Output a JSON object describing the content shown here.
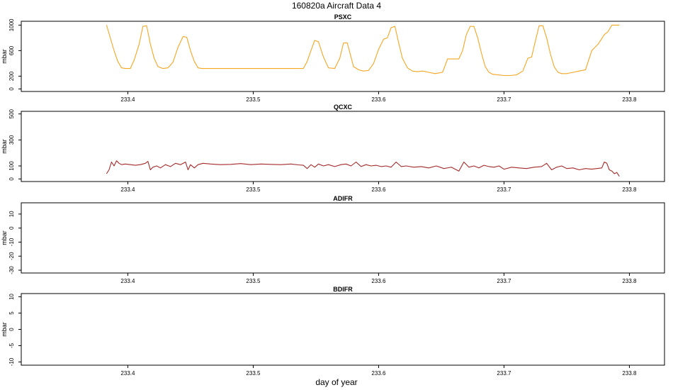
{
  "figure": {
    "title": "160820a    Aircraft Data 4",
    "xlabel": "day of year"
  },
  "chart_data": [
    {
      "type": "line",
      "title": "PSXC",
      "ylabel": "mbar",
      "xlim": [
        233.315,
        233.828
      ],
      "ylim": [
        -40,
        1060
      ],
      "xticks": [
        233.4,
        233.5,
        233.6,
        233.7,
        233.8
      ],
      "yticks": [
        0,
        200,
        600,
        1000
      ],
      "ytick_labels": [
        "0",
        "200",
        "600",
        "1000"
      ],
      "color": "#f5a623",
      "series": [
        {
          "x": [
            233.383,
            233.386,
            233.389,
            233.392,
            233.395,
            233.398,
            233.402,
            233.405,
            233.409,
            233.412,
            233.415,
            233.418,
            233.421,
            233.424,
            233.428,
            233.432,
            233.436,
            233.44,
            233.444,
            233.447,
            233.45,
            233.453,
            233.456,
            233.459,
            233.463,
            233.468,
            233.475,
            233.5,
            233.525,
            233.54,
            233.543,
            233.546,
            233.549,
            233.552,
            233.556,
            233.56,
            233.565,
            233.569,
            233.572,
            233.575,
            233.578,
            233.58,
            233.584,
            233.588,
            233.592,
            233.596,
            233.6,
            233.604,
            233.607,
            233.61,
            233.613,
            233.616,
            233.619,
            233.623,
            233.627,
            233.631,
            233.635,
            233.64,
            233.645,
            233.648,
            233.651,
            233.655,
            233.658,
            233.661,
            233.664,
            233.667,
            233.67,
            233.673,
            233.676,
            233.679,
            233.682,
            233.685,
            233.688,
            233.691,
            233.695,
            233.7,
            233.705,
            233.71,
            233.715,
            233.719,
            233.722,
            233.725,
            233.728,
            233.731,
            233.734,
            233.737,
            233.74,
            233.743,
            233.746,
            233.75,
            233.755,
            233.76,
            233.765,
            233.77,
            233.775,
            233.78,
            233.783,
            233.786,
            233.789,
            233.792
          ],
          "y": [
            1000,
            800,
            600,
            430,
            330,
            320,
            320,
            450,
            700,
            980,
            990,
            700,
            480,
            350,
            320,
            330,
            420,
            650,
            820,
            810,
            600,
            430,
            330,
            320,
            320,
            320,
            320,
            320,
            320,
            320,
            430,
            600,
            760,
            740,
            500,
            330,
            320,
            480,
            720,
            720,
            500,
            350,
            300,
            280,
            290,
            400,
            620,
            780,
            800,
            960,
            980,
            720,
            480,
            330,
            280,
            270,
            280,
            260,
            240,
            250,
            260,
            470,
            470,
            470,
            470,
            600,
            850,
            980,
            980,
            800,
            560,
            350,
            260,
            230,
            220,
            210,
            210,
            220,
            280,
            480,
            500,
            750,
            990,
            990,
            800,
            550,
            350,
            260,
            240,
            240,
            260,
            280,
            300,
            600,
            700,
            850,
            900,
            1000,
            1000,
            1000
          ]
        }
      ]
    },
    {
      "type": "line",
      "title": "QCXC",
      "ylabel": "mbar",
      "xlim": [
        233.315,
        233.828
      ],
      "ylim": [
        -20,
        520
      ],
      "xticks": [
        233.4,
        233.5,
        233.6,
        233.7,
        233.8
      ],
      "yticks": [
        0,
        100,
        300,
        500
      ],
      "ytick_labels": [
        "0",
        "100",
        "300",
        "500"
      ],
      "color": "#a52a2a",
      "series": [
        {
          "x": [
            233.383,
            233.385,
            233.387,
            233.389,
            233.391,
            233.393,
            233.395,
            233.398,
            233.402,
            233.406,
            233.41,
            233.414,
            233.416,
            233.418,
            233.42,
            233.423,
            233.426,
            233.43,
            233.434,
            233.438,
            233.442,
            233.446,
            233.448,
            233.45,
            233.453,
            233.456,
            233.46,
            233.466,
            233.474,
            233.482,
            233.49,
            233.498,
            233.506,
            233.514,
            233.522,
            233.53,
            233.536,
            233.54,
            233.543,
            233.546,
            233.549,
            233.552,
            233.556,
            233.56,
            233.565,
            233.57,
            233.574,
            233.578,
            233.582,
            233.586,
            233.59,
            233.594,
            233.598,
            233.602,
            233.606,
            233.61,
            233.614,
            233.618,
            233.622,
            233.628,
            233.634,
            233.64,
            233.646,
            233.652,
            233.658,
            233.664,
            233.668,
            233.672,
            233.676,
            233.68,
            233.684,
            233.688,
            233.692,
            233.696,
            233.7,
            233.706,
            233.712,
            233.718,
            233.724,
            233.73,
            233.734,
            233.738,
            233.742,
            233.746,
            233.75,
            233.755,
            233.76,
            233.765,
            233.77,
            233.774,
            233.778,
            233.78,
            233.782,
            233.784,
            233.786,
            233.788,
            233.79,
            233.792
          ],
          "y": [
            40,
            70,
            130,
            100,
            140,
            120,
            110,
            115,
            110,
            105,
            110,
            120,
            135,
            70,
            90,
            100,
            85,
            110,
            95,
            120,
            110,
            130,
            70,
            110,
            85,
            110,
            120,
            115,
            110,
            112,
            118,
            110,
            115,
            112,
            110,
            115,
            108,
            105,
            80,
            110,
            90,
            115,
            100,
            110,
            95,
            110,
            115,
            100,
            130,
            95,
            110,
            100,
            105,
            95,
            100,
            90,
            130,
            95,
            100,
            90,
            95,
            85,
            100,
            80,
            90,
            60,
            130,
            90,
            100,
            85,
            105,
            95,
            90,
            100,
            75,
            90,
            85,
            80,
            90,
            95,
            120,
            70,
            90,
            100,
            80,
            85,
            70,
            80,
            75,
            80,
            85,
            130,
            120,
            70,
            60,
            40,
            50,
            20
          ]
        }
      ]
    },
    {
      "type": "line",
      "title": "ADIFR",
      "ylabel": "mbar",
      "xlim": [
        233.315,
        233.828
      ],
      "ylim": [
        -32,
        18
      ],
      "xticks": [
        233.4,
        233.5,
        233.6,
        233.7,
        233.8
      ],
      "yticks": [
        -30,
        -20,
        -10,
        0,
        10
      ],
      "ytick_labels": [
        "-30",
        "-20",
        "-10",
        "0",
        "10"
      ],
      "color": "#000000",
      "series": []
    },
    {
      "type": "line",
      "title": "BDIFR",
      "ylabel": "mbar",
      "xlim": [
        233.315,
        233.828
      ],
      "ylim": [
        -11,
        11
      ],
      "xticks": [
        233.4,
        233.5,
        233.6,
        233.7,
        233.8
      ],
      "yticks": [
        -10,
        -5,
        0,
        5,
        10
      ],
      "ytick_labels": [
        "-10",
        "-5",
        "0",
        "5",
        "10"
      ],
      "color": "#000000",
      "series": []
    }
  ]
}
